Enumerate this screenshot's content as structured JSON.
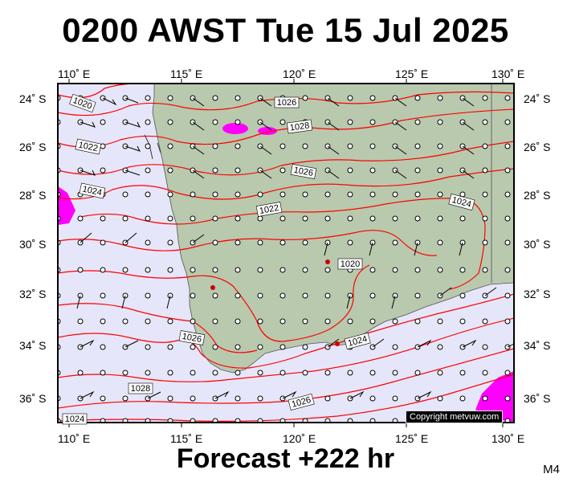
{
  "header": {
    "title": "0200 AWST Tue 15 Jul 2025"
  },
  "footer": {
    "forecast": "Forecast +222 hr",
    "model": "M4",
    "copyright": "Copyright metvuw.com"
  },
  "map": {
    "lon_labels": [
      "110˚ E",
      "115˚ E",
      "120˚ E",
      "125˚ E",
      "130˚ E"
    ],
    "lat_labels": [
      "24˚ S",
      "26˚ S",
      "28˚ S",
      "30˚ S",
      "32˚ S",
      "34˚ S",
      "36˚ S"
    ],
    "isobar_labels": [
      "1020",
      "1022",
      "1024",
      "1026",
      "1028",
      "1026",
      "1024",
      "1022",
      "1020",
      "1024",
      "1026",
      "1028",
      "1026",
      "1024"
    ],
    "colors": {
      "sea": "#e6e6fa",
      "land": "#b8c9ae",
      "isobar": "#ff0000",
      "rain": "#ff00ff"
    }
  }
}
